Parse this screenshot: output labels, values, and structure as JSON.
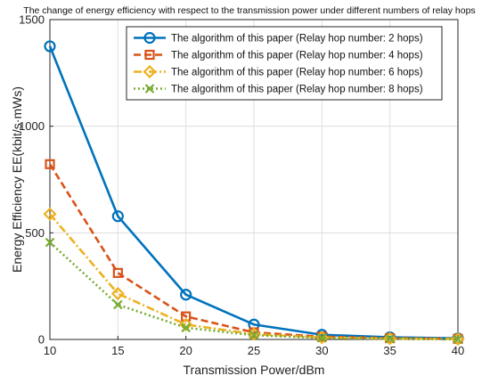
{
  "chart_data": {
    "type": "line",
    "title": "The change of energy efficiency with respect to the transmission power under different numbers of relay hops",
    "xlabel": "Transmission Power/dBm",
    "ylabel": "Energy Efficiency EE(kbit/s·mWs)",
    "xlim": [
      10,
      40
    ],
    "ylim": [
      0,
      1500
    ],
    "xticks": [
      10,
      15,
      20,
      25,
      30,
      35,
      40
    ],
    "yticks": [
      0,
      500,
      1000,
      1500
    ],
    "grid": true,
    "legend_position": "top-right",
    "x": [
      10,
      15,
      20,
      25,
      30,
      35,
      40
    ],
    "series": [
      {
        "name": "The algorithm of this paper (Relay hop number: 2 hops)",
        "values": [
          1375,
          578,
          210,
          70,
          22,
          10,
          5
        ],
        "color": "#0072BD",
        "line_style": "solid",
        "marker": "circle"
      },
      {
        "name": "The algorithm of this paper (Relay hop number: 4 hops)",
        "values": [
          822,
          312,
          108,
          33,
          13,
          6,
          3
        ],
        "color": "#D95319",
        "line_style": "dashed",
        "marker": "square"
      },
      {
        "name": "The algorithm of this paper (Relay hop number: 6 hops)",
        "values": [
          588,
          215,
          70,
          25,
          9,
          4,
          2
        ],
        "color": "#EDB120",
        "line_style": "dashdot",
        "marker": "diamond"
      },
      {
        "name": "The algorithm of this paper (Relay hop number: 8 hops)",
        "values": [
          455,
          163,
          55,
          20,
          7,
          3,
          1
        ],
        "color": "#77AC30",
        "line_style": "dotted",
        "marker": "x"
      }
    ]
  }
}
